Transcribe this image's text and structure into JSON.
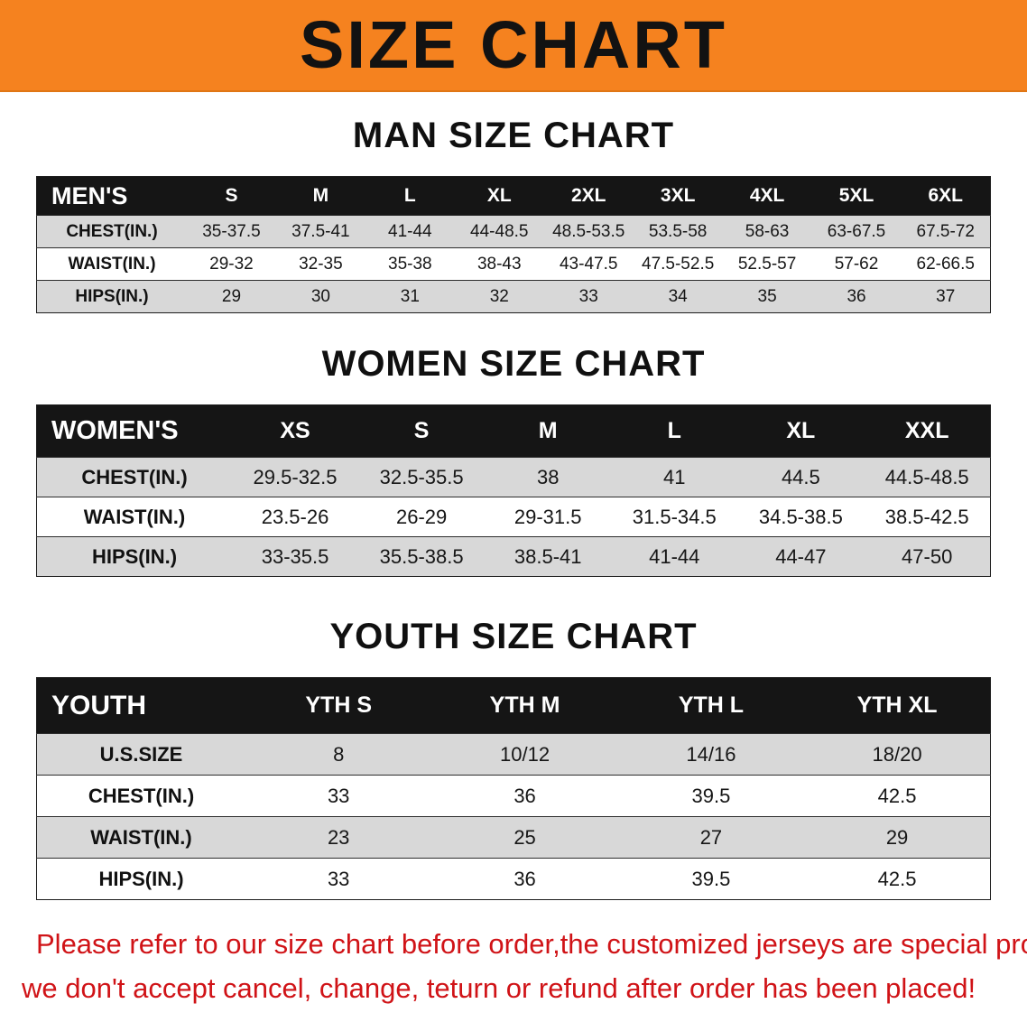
{
  "banner": {
    "title": "SIZE CHART",
    "bg_color": "#F5821F",
    "text_color": "#121212"
  },
  "sections": [
    {
      "heading": "MAN SIZE CHART",
      "table": {
        "header": {
          "label": "MEN'S",
          "columns": [
            "S",
            "M",
            "L",
            "XL",
            "2XL",
            "3XL",
            "4XL",
            "5XL",
            "6XL"
          ]
        },
        "rows": [
          {
            "label": "CHEST(IN.)",
            "values": [
              "35-37.5",
              "37.5-41",
              "41-44",
              "44-48.5",
              "48.5-53.5",
              "53.5-58",
              "58-63",
              "63-67.5",
              "67.5-72"
            ]
          },
          {
            "label": "WAIST(IN.)",
            "values": [
              "29-32",
              "32-35",
              "35-38",
              "38-43",
              "43-47.5",
              "47.5-52.5",
              "52.5-57",
              "57-62",
              "62-66.5"
            ]
          },
          {
            "label": "HIPS(IN.)",
            "values": [
              "29",
              "30",
              "31",
              "32",
              "33",
              "34",
              "35",
              "36",
              "37"
            ]
          }
        ]
      }
    },
    {
      "heading": "WOMEN SIZE CHART",
      "table": {
        "header": {
          "label": "WOMEN'S",
          "columns": [
            "XS",
            "S",
            "M",
            "L",
            "XL",
            "XXL"
          ]
        },
        "rows": [
          {
            "label": "CHEST(IN.)",
            "values": [
              "29.5-32.5",
              "32.5-35.5",
              "38",
              "41",
              "44.5",
              "44.5-48.5"
            ]
          },
          {
            "label": "WAIST(IN.)",
            "values": [
              "23.5-26",
              "26-29",
              "29-31.5",
              "31.5-34.5",
              "34.5-38.5",
              "38.5-42.5"
            ]
          },
          {
            "label": "HIPS(IN.)",
            "values": [
              "33-35.5",
              "35.5-38.5",
              "38.5-41",
              "41-44",
              "44-47",
              "47-50"
            ]
          }
        ]
      }
    },
    {
      "heading": "YOUTH SIZE CHART",
      "table": {
        "header": {
          "label": "YOUTH",
          "columns": [
            "YTH S",
            "YTH M",
            "YTH L",
            "YTH XL"
          ]
        },
        "rows": [
          {
            "label": "U.S.SIZE",
            "values": [
              "8",
              "10/12",
              "14/16",
              "18/20"
            ]
          },
          {
            "label": "CHEST(IN.)",
            "values": [
              "33",
              "36",
              "39.5",
              "42.5"
            ]
          },
          {
            "label": "WAIST(IN.)",
            "values": [
              "23",
              "25",
              "27",
              "29"
            ]
          },
          {
            "label": "HIPS(IN.)",
            "values": [
              "33",
              "36",
              "39.5",
              "42.5"
            ]
          }
        ]
      }
    }
  ],
  "footer": {
    "line1": "Please refer to our size chart before order,the customized jerseys are special products,",
    "line2": "we don't accept cancel, change, teturn or refund after order has been placed!",
    "text_color": "#D01317"
  }
}
